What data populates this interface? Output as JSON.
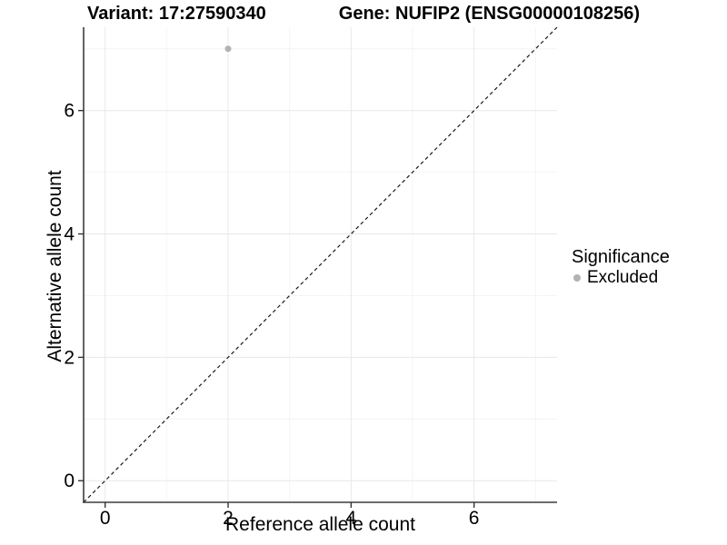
{
  "header": {
    "variant_title": "Variant: 17:27590340",
    "gene_title": "Gene: NUFIP2 (ENSG00000108256)"
  },
  "legend": {
    "title": "Significance",
    "items": [
      {
        "label": "Excluded",
        "color": "#b3b3b3"
      }
    ]
  },
  "colors": {
    "background": "#ffffff",
    "grid_major": "#e8e8e8",
    "grid_minor": "#f4f4f4",
    "axis_line": "#3c3c3c",
    "tick_mark": "#333333",
    "tick_label": "#000000",
    "reference_line": "#1a1a1a",
    "point": "#b3b3b3"
  },
  "chart_data": {
    "type": "scatter",
    "title": "Variant: 17:27590340   Gene: NUFIP2 (ENSG00000108256)",
    "xlabel": "Reference allele count",
    "ylabel": "Alternative allele count",
    "xlim": [
      -0.35,
      7.35
    ],
    "ylim": [
      -0.35,
      7.35
    ],
    "x_ticks": [
      0,
      2,
      4,
      6
    ],
    "y_ticks": [
      0,
      2,
      4,
      6
    ],
    "x_minor_ticks": [
      1,
      3,
      5,
      7
    ],
    "y_minor_ticks": [
      1,
      3,
      5,
      7
    ],
    "grid": "major+minor",
    "legend_position": "right",
    "series": [
      {
        "name": "Excluded",
        "color": "#b3b3b3",
        "points": [
          {
            "x": 2,
            "y": 7
          }
        ]
      }
    ],
    "reference_line": {
      "type": "identity",
      "slope": 1,
      "intercept": 0,
      "style": "dashed",
      "color": "#1a1a1a"
    }
  }
}
